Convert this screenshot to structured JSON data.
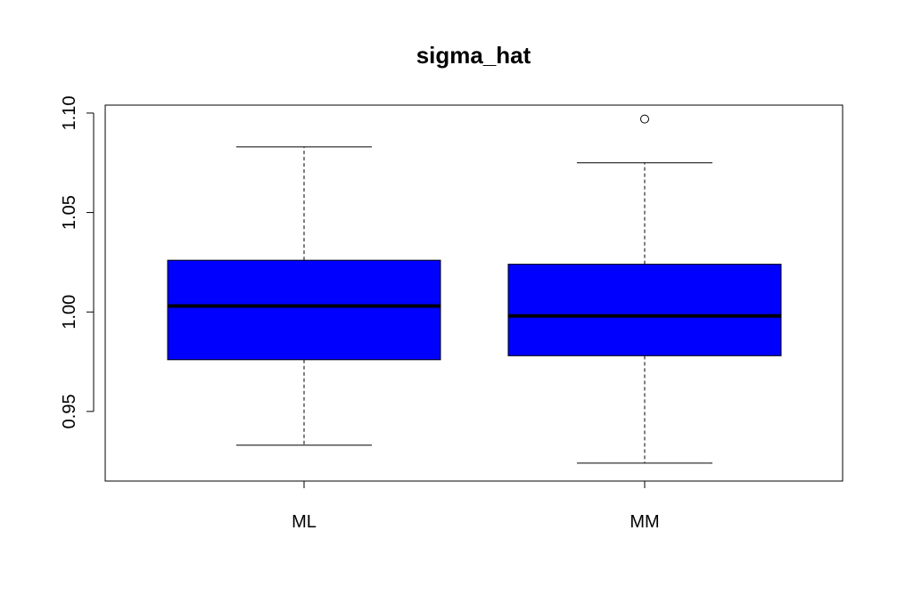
{
  "chart_data": {
    "type": "boxplot",
    "title": "sigma_hat",
    "xlabel": "",
    "ylabel": "",
    "categories": [
      "ML",
      "MM"
    ],
    "yticks": [
      "0.95",
      "1.00",
      "1.05",
      "1.10"
    ],
    "ylim": [
      0.915,
      1.104
    ],
    "fill_color": "#0000ff",
    "boxes": [
      {
        "label": "ML",
        "whisker_low": 0.933,
        "q1": 0.976,
        "median": 1.003,
        "q3": 1.026,
        "whisker_high": 1.083,
        "outliers": []
      },
      {
        "label": "MM",
        "whisker_low": 0.924,
        "q1": 0.978,
        "median": 0.998,
        "q3": 1.024,
        "whisker_high": 1.075,
        "outliers": [
          1.097
        ]
      }
    ]
  }
}
